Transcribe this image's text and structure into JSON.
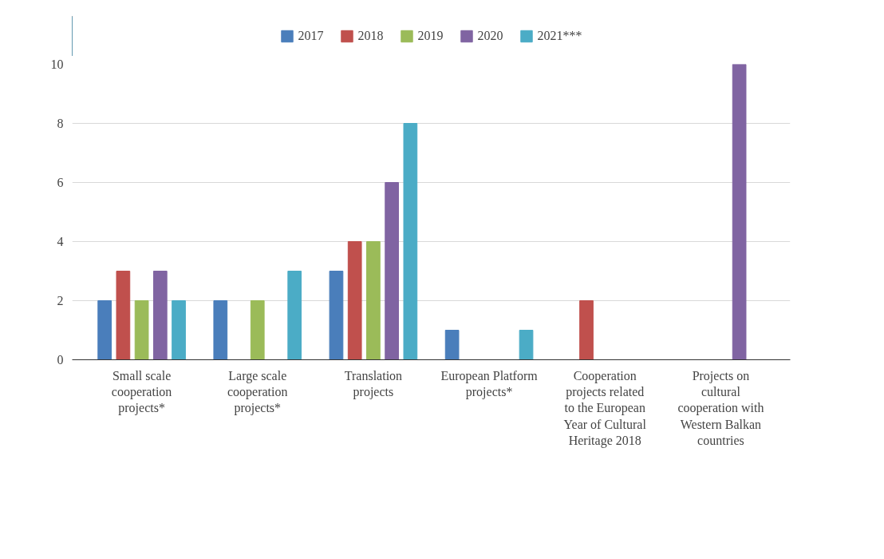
{
  "chart_data": {
    "type": "bar",
    "categories": [
      "Small scale cooperation projects*",
      "Large scale cooperation projects*",
      "Translation projects",
      "European Platform projects*",
      "Cooperation projects related to the European Year of Cultural Heritage 2018",
      "Projects on cultural cooperation with Western Balkan countries"
    ],
    "series": [
      {
        "name": "2017",
        "color": "#4a7ebb",
        "values": [
          2,
          2,
          3,
          1,
          null,
          null
        ]
      },
      {
        "name": "2018",
        "color": "#c0504d",
        "values": [
          3,
          null,
          4,
          null,
          2,
          null
        ]
      },
      {
        "name": "2019",
        "color": "#9bbb59",
        "values": [
          2,
          2,
          4,
          null,
          null,
          null
        ]
      },
      {
        "name": "2020",
        "color": "#8064a2",
        "values": [
          3,
          null,
          6,
          null,
          null,
          10
        ]
      },
      {
        "name": "2021***",
        "color": "#4bacc6",
        "values": [
          2,
          3,
          8,
          1,
          null,
          null
        ]
      }
    ],
    "ylim": [
      0,
      10
    ],
    "yticks": [
      0,
      2,
      4,
      6,
      8,
      10
    ],
    "grid": "y",
    "legend": "top"
  }
}
